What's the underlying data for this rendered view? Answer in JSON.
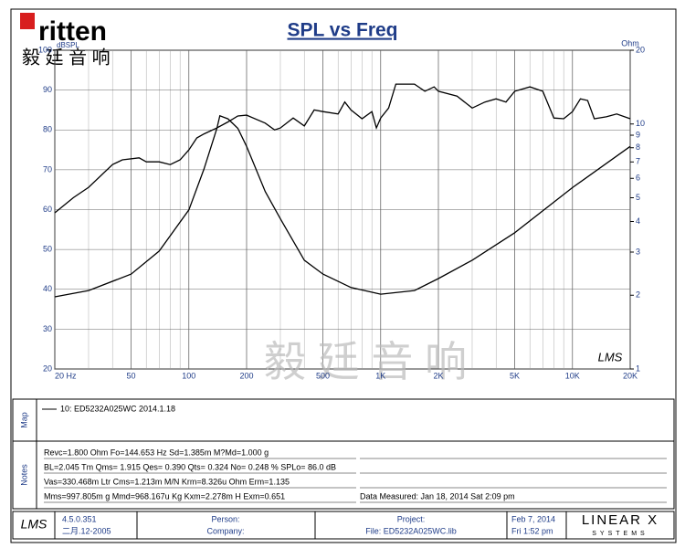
{
  "logo": {
    "brand": "ritten",
    "chinese": "毅 廷 音 响"
  },
  "watermark": "毅 廷 音 响",
  "plot_mark": "LMS",
  "chart_data": {
    "type": "line",
    "title": "SPL vs Freq",
    "ylabel": "dBSPL",
    "y2label": "Ohm",
    "xscale": "log",
    "y2scale": "log",
    "grid": true,
    "xlim": [
      20,
      20000
    ],
    "ylim": [
      20,
      100
    ],
    "y2lim": [
      1,
      20
    ],
    "xticks": [
      {
        "value": 20,
        "label": "20 Hz"
      },
      50,
      100,
      200,
      500,
      {
        "value": 1000,
        "label": "1K"
      },
      {
        "value": 2000,
        "label": "2K"
      },
      {
        "value": 5000,
        "label": "5K"
      },
      {
        "value": 10000,
        "label": "10K"
      },
      {
        "value": 20000,
        "label": "20K"
      }
    ],
    "xgrid": [
      30,
      40,
      60,
      70,
      80,
      90,
      300,
      400,
      600,
      700,
      800,
      900,
      3000,
      4000,
      6000,
      7000,
      8000,
      9000
    ],
    "yticks": [
      20,
      30,
      40,
      50,
      60,
      70,
      80,
      90,
      100
    ],
    "y2ticks": [
      1,
      2,
      3,
      4,
      5,
      6,
      7,
      8,
      9,
      10,
      20
    ],
    "series": [
      {
        "name": "SPL",
        "color": "#000000",
        "x": [
          20,
          25,
          30,
          40,
          45,
          55,
          60,
          70,
          80,
          90,
          100,
          110,
          120,
          140,
          160,
          180,
          200,
          250,
          280,
          300,
          350,
          400,
          450,
          500,
          600,
          650,
          700,
          800,
          900,
          950,
          1000,
          1100,
          1200,
          1500,
          1700,
          1900,
          2000,
          2500,
          3000,
          3500,
          4000,
          4500,
          5000,
          6000,
          7000,
          8000,
          9000,
          10000,
          11000,
          12000,
          13000,
          15000,
          17000,
          20000
        ],
        "values": [
          59.2,
          63,
          65.6,
          71.3,
          72.5,
          73,
          72,
          72,
          71.3,
          72.5,
          75,
          78,
          79,
          80.5,
          82,
          83.5,
          83.7,
          81.7,
          80,
          80.5,
          83,
          81,
          85,
          84.6,
          84,
          87,
          85,
          82.8,
          84.6,
          80.5,
          83,
          85.5,
          91.5,
          91.5,
          89.7,
          90.8,
          89.7,
          88.5,
          85.5,
          87,
          87.8,
          87,
          89.7,
          90.8,
          89.7,
          83,
          82.8,
          84.6,
          87.8,
          87.4,
          82.8,
          83.3,
          84,
          82.8
        ]
      },
      {
        "name": "Impedance",
        "color": "#000000",
        "axis": "y2",
        "x": [
          20,
          30,
          50,
          70,
          100,
          120,
          140,
          145,
          160,
          180,
          200,
          250,
          300,
          400,
          500,
          700,
          1000,
          1500,
          2000,
          3000,
          5000,
          10000,
          20000
        ],
        "values": [
          1.97,
          2.09,
          2.44,
          3.03,
          4.46,
          6.56,
          9.6,
          10.8,
          10.5,
          9.6,
          8.1,
          5.3,
          4.1,
          2.78,
          2.44,
          2.15,
          2.02,
          2.09,
          2.34,
          2.78,
          3.6,
          5.5,
          8.1
        ]
      }
    ]
  },
  "map": {
    "label": "Map",
    "entry": "10: ED5232A025WC",
    "date": "2014.1.18"
  },
  "notes": {
    "label": "Notes",
    "lines": [
      "Revc=1.800 Ohm  Fo=144.653 Hz  Sd=1.385m M?Md=1.000 g",
      "BL=2.045 Tm  Qms= 1.915  Qes= 0.390  Qts= 0.324  No= 0.248 %  SPLo= 86.0 dB",
      "Vas=330.468m Ltr  Cms=1.213m M/N  Krm=8.326u Ohm  Erm=1.135",
      "Mms=997.805m g  Mmd=968.167u Kg  Kxm=2.278m H  Exm=0.651"
    ],
    "measured": "Data Measured: Jan 18, 2014  Sat  2:09 pm"
  },
  "footer": {
    "logo": "LMS",
    "version": "4.5.0.351",
    "build": "二月.12-2005",
    "person": "Person:",
    "company": "Company:",
    "project": "Project:",
    "file": "File: ED5232A025WC.lib",
    "date": "Feb  7, 2014",
    "time": "Fri  1:52 pm",
    "brand": "LINEAR X",
    "brand_sub": "SYSTEMS"
  }
}
